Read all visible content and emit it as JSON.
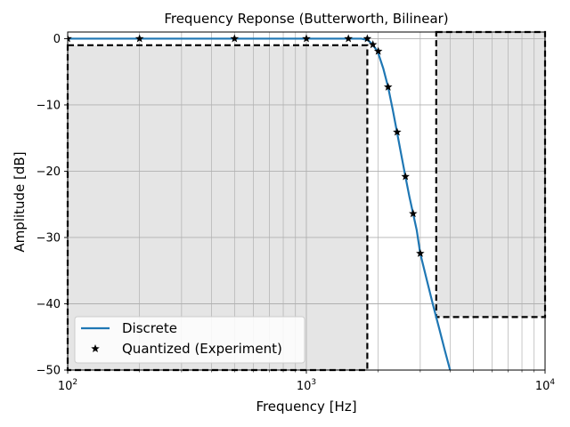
{
  "chart_data": {
    "type": "line",
    "title": "Frequency Reponse (Butterworth, Bilinear)",
    "xlabel": "Frequency [Hz]",
    "ylabel": "Amplitude [dB]",
    "xscale": "log",
    "xlim": [
      100,
      10000
    ],
    "ylim": [
      -50,
      1
    ],
    "x_ticks": [
      100,
      1000,
      10000
    ],
    "x_tick_labels": [
      {
        "base": "10",
        "exp": "2"
      },
      {
        "base": "10",
        "exp": "3"
      },
      {
        "base": "10",
        "exp": "4"
      }
    ],
    "y_ticks": [
      0,
      -10,
      -20,
      -30,
      -40,
      -50
    ],
    "y_tick_labels": [
      "0",
      "−10",
      "−20",
      "−30",
      "−40",
      "−50"
    ],
    "grid": true,
    "legend_position": "lower-left",
    "series": [
      {
        "name": "Discrete",
        "style": "line",
        "color": "#1f77b4",
        "x": [
          100,
          200,
          500,
          1000,
          1500,
          1700,
          1800,
          1850,
          1900,
          1950,
          2000,
          2100,
          2200,
          2300,
          2400,
          2500,
          2600,
          2700,
          2800,
          2900,
          3000,
          3200,
          3400,
          3600,
          3800,
          4000
        ],
        "y": [
          0,
          0,
          0,
          0,
          0,
          0,
          -0.2,
          -0.5,
          -1.0,
          -1.5,
          -2.2,
          -4.5,
          -7.3,
          -10.7,
          -14.2,
          -17.6,
          -20.8,
          -23.8,
          -26.4,
          -28.9,
          -32.4,
          -36.5,
          -40.3,
          -43.7,
          -47.0,
          -50.0
        ]
      },
      {
        "name": "Quantized (Experiment)",
        "style": "markers",
        "marker": "star",
        "color": "#000000",
        "x": [
          100,
          200,
          500,
          1000,
          1500,
          1800,
          1900,
          2000,
          2200,
          2400,
          2600,
          2800,
          3000
        ],
        "y": [
          0,
          0,
          0,
          0,
          0,
          0,
          -0.9,
          -1.9,
          -7.3,
          -14.1,
          -20.8,
          -26.4,
          -32.4
        ]
      }
    ],
    "spec_regions": [
      {
        "x": [
          100,
          1800
        ],
        "y": [
          -50,
          -1
        ],
        "fill": "#e5e5e5"
      },
      {
        "x": [
          3500,
          10000
        ],
        "y": [
          -42,
          1
        ],
        "fill": "#e5e5e5"
      }
    ]
  }
}
